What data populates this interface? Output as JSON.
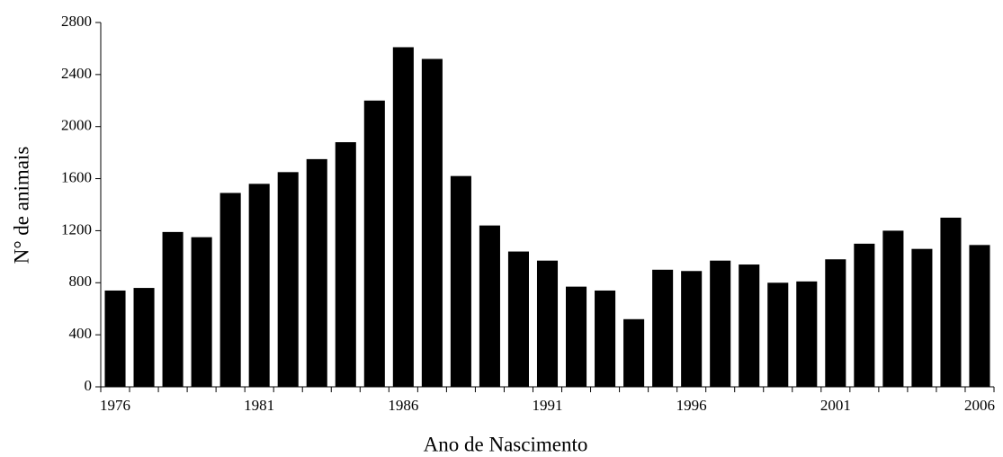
{
  "chart_data": {
    "type": "bar",
    "x_label": "Ano de Nascimento",
    "y_label": "N° de animais",
    "categories": [
      "1976",
      null,
      null,
      null,
      null,
      "1981",
      null,
      null,
      null,
      null,
      "1986",
      null,
      null,
      null,
      null,
      "1991",
      null,
      null,
      null,
      null,
      "1996",
      null,
      null,
      null,
      null,
      "2001",
      null,
      null,
      null,
      null,
      "2006"
    ],
    "values": [
      740,
      760,
      1190,
      1150,
      1490,
      1560,
      1650,
      1750,
      1880,
      2200,
      2610,
      2520,
      1620,
      1240,
      1040,
      970,
      770,
      740,
      520,
      900,
      890,
      970,
      940,
      800,
      810,
      980,
      1100,
      1200,
      1060,
      1300,
      1090
    ],
    "color": "#000000",
    "ylim": [
      0,
      2800
    ],
    "yticks": [
      0,
      400,
      800,
      1200,
      1600,
      2000,
      2400,
      2800
    ],
    "grid": false
  }
}
